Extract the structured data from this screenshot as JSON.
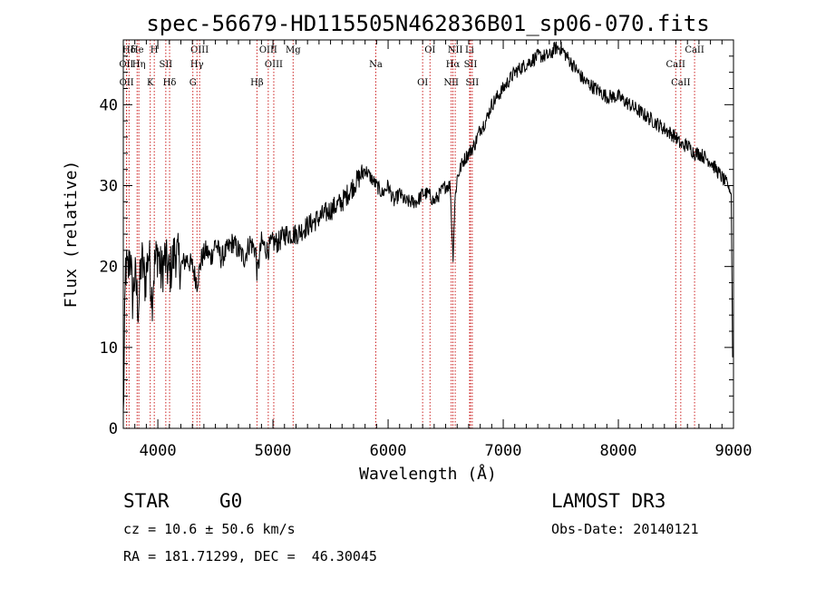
{
  "chart_data": {
    "type": "line",
    "title": "spec-56679-HD115505N462836B01_sp06-070.fits",
    "xlabel": "Wavelength (Å)",
    "ylabel": "Flux (relative)",
    "xlim": [
      3700,
      9000
    ],
    "ylim": [
      0,
      48
    ],
    "x_ticks": [
      4000,
      5000,
      6000,
      7000,
      8000,
      9000
    ],
    "x_tick_labels": [
      "4000",
      "5000",
      "6000",
      "7000",
      "8000",
      "9000"
    ],
    "y_ticks": [
      0,
      10,
      20,
      30,
      40
    ],
    "y_tick_labels": [
      "0",
      "10",
      "20",
      "30",
      "40"
    ],
    "grid": false,
    "series": [
      {
        "name": "spectrum",
        "x": [
          3700,
          3720,
          3740,
          3760,
          3780,
          3800,
          3830,
          3860,
          3890,
          3920,
          3950,
          3970,
          4000,
          4030,
          4060,
          4100,
          4150,
          4200,
          4250,
          4300,
          4340,
          4380,
          4420,
          4460,
          4500,
          4550,
          4600,
          4650,
          4700,
          4750,
          4800,
          4850,
          4862,
          4900,
          4950,
          5000,
          5050,
          5100,
          5150,
          5200,
          5300,
          5400,
          5500,
          5600,
          5700,
          5750,
          5800,
          5850,
          5900,
          5950,
          6000,
          6050,
          6100,
          6150,
          6200,
          6250,
          6300,
          6350,
          6400,
          6450,
          6500,
          6540,
          6563,
          6580,
          6600,
          6650,
          6700,
          6750,
          6800,
          6850,
          6900,
          6950,
          7000,
          7100,
          7200,
          7300,
          7400,
          7450,
          7500,
          7550,
          7600,
          7650,
          7700,
          7800,
          7900,
          8000,
          8100,
          8200,
          8300,
          8400,
          8500,
          8542,
          8600,
          8662,
          8700,
          8800,
          8900,
          8950,
          8980,
          8995
        ],
        "y": [
          1,
          20,
          19,
          22,
          16,
          19,
          15,
          21,
          18,
          22,
          16,
          20,
          22,
          19,
          21,
          19,
          22,
          20,
          21,
          20,
          18,
          21,
          22,
          21,
          23,
          21,
          22,
          23,
          22,
          21,
          23,
          22,
          19,
          23,
          22,
          23,
          23,
          24,
          24,
          24,
          25,
          26,
          27,
          28,
          30,
          31,
          32,
          31,
          30,
          29,
          30,
          28,
          29,
          28,
          28,
          28,
          29,
          29,
          28,
          29,
          30,
          30,
          21,
          28,
          31,
          33,
          34,
          35,
          37,
          38,
          40,
          41,
          42,
          44,
          45,
          46,
          46,
          47,
          47,
          46,
          45,
          44,
          43,
          42,
          41,
          41,
          40,
          39,
          38,
          37,
          36,
          35,
          35,
          34,
          34,
          33,
          31,
          30,
          29,
          4
        ]
      }
    ],
    "line_markers": [
      {
        "label": "Hδ",
        "x": 3750
      },
      {
        "label": "OII",
        "x": 3727
      },
      {
        "label": "OII",
        "x": 3729
      },
      {
        "label": "He",
        "x": 3820
      },
      {
        "label": "Hη",
        "x": 3835
      },
      {
        "label": "K",
        "x": 3934
      },
      {
        "label": "H",
        "x": 3969
      },
      {
        "label": "SII",
        "x": 4069
      },
      {
        "label": "Hδ",
        "x": 4102
      },
      {
        "label": "OIII",
        "x": 4363
      },
      {
        "label": "Hγ",
        "x": 4340
      },
      {
        "label": "G",
        "x": 4304
      },
      {
        "label": "OIII",
        "x": 4959
      },
      {
        "label": "OIII",
        "x": 5007
      },
      {
        "label": "Hβ",
        "x": 4861
      },
      {
        "label": "Mg",
        "x": 5175
      },
      {
        "label": "Na",
        "x": 5893
      },
      {
        "label": "OI",
        "x": 6300
      },
      {
        "label": "OI",
        "x": 6364
      },
      {
        "label": "Hα",
        "x": 6563
      },
      {
        "label": "NII",
        "x": 6548
      },
      {
        "label": "NII",
        "x": 6583
      },
      {
        "label": "SII",
        "x": 6716
      },
      {
        "label": "SII",
        "x": 6731
      },
      {
        "label": "Li",
        "x": 6708
      },
      {
        "label": "CaII",
        "x": 8498
      },
      {
        "label": "CaII",
        "x": 8542
      },
      {
        "label": "CaII",
        "x": 8662
      }
    ]
  },
  "info": {
    "object_class": "STAR",
    "subclass": "G0",
    "cz": "cz = 10.6 ± 50.6 km/s",
    "coords": "RA = 181.71299, DEC =  46.30045",
    "survey": "LAMOST DR3",
    "obs_date": "Obs-Date: 20140121"
  }
}
